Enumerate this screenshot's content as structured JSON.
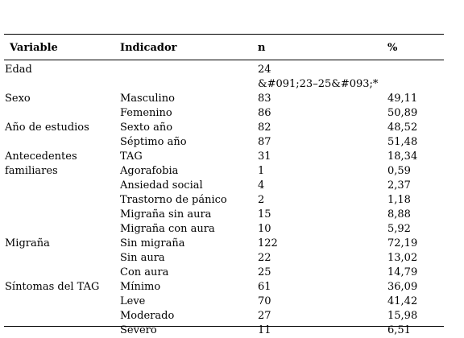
{
  "table": {
    "headers": [
      "Variable",
      "Indicador",
      "n",
      "%"
    ],
    "rows": [
      {
        "variable": "Edad",
        "indicador": "",
        "n": "24",
        "pct": "",
        "n_extra": "&#091;23–25&#093;*"
      },
      {
        "variable": "Sexo",
        "indicador": "Masculino",
        "n": "83",
        "pct": "49,11"
      },
      {
        "variable": "",
        "indicador": "Femenino",
        "n": "86",
        "pct": "50,89"
      },
      {
        "variable": "Año de estudios",
        "indicador": "Sexto año",
        "n": "82",
        "pct": "48,52"
      },
      {
        "variable": "",
        "indicador": "Séptimo año",
        "n": "87",
        "pct": "51,48"
      },
      {
        "variable": "Antecedentes",
        "indicador": "TAG",
        "n": "31",
        "pct": "18,34"
      },
      {
        "variable": "familiares",
        "indicador": "Agorafobia",
        "n": "1",
        "pct": "0,59"
      },
      {
        "variable": "",
        "indicador": "Ansiedad social",
        "n": "4",
        "pct": "2,37"
      },
      {
        "variable": "",
        "indicador": "Trastorno de pánico",
        "n": "2",
        "pct": "1,18"
      },
      {
        "variable": "",
        "indicador": "Migraña sin aura",
        "n": "15",
        "pct": "8,88"
      },
      {
        "variable": "",
        "indicador": "Migraña con aura",
        "n": "10",
        "pct": "5,92"
      },
      {
        "variable": "Migraña",
        "indicador": "Sin migraña",
        "n": "122",
        "pct": "72,19"
      },
      {
        "variable": "",
        "indicador": "Sin aura",
        "n": "22",
        "pct": "13,02"
      },
      {
        "variable": "",
        "indicador": "Con aura",
        "n": "25",
        "pct": "14,79"
      },
      {
        "variable": "Síntomas del TAG",
        "indicador": "Mínimo",
        "n": "61",
        "pct": "36,09"
      },
      {
        "variable": "",
        "indicador": "Leve",
        "n": "70",
        "pct": "41,42"
      },
      {
        "variable": "",
        "indicador": "Moderado",
        "n": "27",
        "pct": "15,98"
      },
      {
        "variable": "",
        "indicador": "Severo",
        "n": "11",
        "pct": "6,51"
      }
    ]
  }
}
